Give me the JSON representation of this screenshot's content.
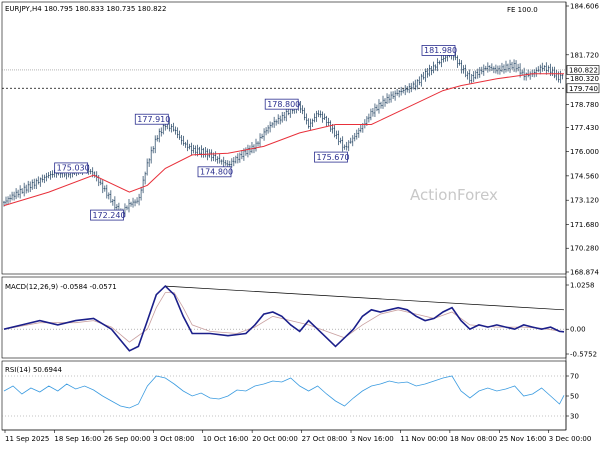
{
  "chart_data": [
    {
      "type": "candlestick-line",
      "title": "EURJPY,H4",
      "ohlc": [
        "180.795",
        "180.833",
        "180.735",
        "180.822"
      ],
      "corner_label": "FE 100.0",
      "watermark": "ActionForex",
      "ylim": [
        168.874,
        184.606
      ],
      "y_ticks": [
        "184.606",
        "181.720",
        "180.320",
        "178.780",
        "177.430",
        "176.000",
        "174.560",
        "173.120",
        "171.680",
        "170.280",
        "168.874"
      ],
      "x_ticks": [
        "11 Sep 2025",
        "18 Sep 16:00",
        "26 Sep 00:00",
        "3 Oct 08:00",
        "10 Oct 16:00",
        "20 Oct 00:00",
        "27 Oct 08:00",
        "3 Nov 16:00",
        "11 Nov 00:00",
        "18 Nov 08:00",
        "25 Nov 16:00",
        "3 Dec 00:00"
      ],
      "price_labels": [
        {
          "label": "175.030",
          "value": 175.03,
          "x": 18
        },
        {
          "label": "172.240",
          "value": 172.24,
          "x": 26
        },
        {
          "label": "177.910",
          "value": 177.91,
          "x": 36
        },
        {
          "label": "174.800",
          "value": 174.8,
          "x": 50
        },
        {
          "label": "178.800",
          "value": 178.8,
          "x": 65
        },
        {
          "label": "175.670",
          "value": 175.67,
          "x": 76
        },
        {
          "label": "181.980",
          "value": 181.98,
          "x": 100
        }
      ],
      "last_price": "180.822",
      "support_level": "179.740",
      "close_path": [
        [
          0,
          173.0
        ],
        [
          2,
          173.4
        ],
        [
          4,
          173.7
        ],
        [
          6,
          174.0
        ],
        [
          8,
          174.3
        ],
        [
          10,
          174.6
        ],
        [
          12,
          174.8
        ],
        [
          14,
          174.7
        ],
        [
          16,
          174.9
        ],
        [
          18,
          175.0
        ],
        [
          20,
          174.7
        ],
        [
          22,
          173.9
        ],
        [
          24,
          173.1
        ],
        [
          26,
          172.3
        ],
        [
          28,
          172.9
        ],
        [
          30,
          173.1
        ],
        [
          32,
          175.3
        ],
        [
          34,
          176.8
        ],
        [
          36,
          177.6
        ],
        [
          38,
          177.3
        ],
        [
          40,
          176.5
        ],
        [
          42,
          176.1
        ],
        [
          44,
          176.0
        ],
        [
          46,
          175.8
        ],
        [
          48,
          175.5
        ],
        [
          50,
          175.2
        ],
        [
          52,
          175.6
        ],
        [
          54,
          176.0
        ],
        [
          56,
          176.3
        ],
        [
          58,
          177.1
        ],
        [
          60,
          177.7
        ],
        [
          62,
          178.0
        ],
        [
          64,
          178.5
        ],
        [
          66,
          178.7
        ],
        [
          68,
          177.5
        ],
        [
          70,
          178.3
        ],
        [
          72,
          177.8
        ],
        [
          74,
          177.0
        ],
        [
          76,
          176.2
        ],
        [
          78,
          176.8
        ],
        [
          80,
          177.5
        ],
        [
          82,
          178.3
        ],
        [
          84,
          178.8
        ],
        [
          86,
          179.2
        ],
        [
          88,
          179.5
        ],
        [
          90,
          179.7
        ],
        [
          92,
          180.0
        ],
        [
          94,
          180.6
        ],
        [
          96,
          181.0
        ],
        [
          98,
          181.5
        ],
        [
          100,
          181.8
        ],
        [
          102,
          181.0
        ],
        [
          104,
          180.3
        ],
        [
          106,
          180.7
        ],
        [
          108,
          181.0
        ],
        [
          110,
          180.8
        ],
        [
          112,
          181.0
        ],
        [
          114,
          181.1
        ],
        [
          116,
          180.5
        ],
        [
          118,
          180.6
        ],
        [
          120,
          181.0
        ],
        [
          122,
          180.8
        ],
        [
          124,
          180.3
        ],
        [
          125,
          180.8
        ]
      ],
      "ma_path": [
        [
          0,
          172.8
        ],
        [
          10,
          173.6
        ],
        [
          20,
          174.6
        ],
        [
          28,
          173.6
        ],
        [
          32,
          174.0
        ],
        [
          36,
          175.0
        ],
        [
          42,
          175.8
        ],
        [
          50,
          175.9
        ],
        [
          58,
          176.3
        ],
        [
          66,
          177.1
        ],
        [
          74,
          177.6
        ],
        [
          82,
          177.6
        ],
        [
          90,
          178.6
        ],
        [
          98,
          179.6
        ],
        [
          102,
          179.9
        ],
        [
          110,
          180.3
        ],
        [
          118,
          180.6
        ],
        [
          125,
          180.6
        ]
      ]
    },
    {
      "type": "line",
      "title": "MACD(12,26,9) -0.0584 -0.0571",
      "ylim": [
        -0.5752,
        1.0258
      ],
      "y_ticks": [
        "1.0258",
        "0.00",
        "-0.5752"
      ],
      "series": [
        {
          "values": [
            [
              0,
              0.0
            ],
            [
              4,
              0.1
            ],
            [
              8,
              0.2
            ],
            [
              12,
              0.1
            ],
            [
              16,
              0.2
            ],
            [
              20,
              0.25
            ],
            [
              24,
              0.0
            ],
            [
              28,
              -0.5
            ],
            [
              30,
              -0.4
            ],
            [
              32,
              0.2
            ],
            [
              34,
              0.8
            ],
            [
              36,
              1.0
            ],
            [
              38,
              0.8
            ],
            [
              40,
              0.3
            ],
            [
              42,
              -0.1
            ],
            [
              46,
              -0.1
            ],
            [
              50,
              -0.15
            ],
            [
              54,
              -0.1
            ],
            [
              56,
              0.1
            ],
            [
              58,
              0.35
            ],
            [
              60,
              0.4
            ],
            [
              62,
              0.3
            ],
            [
              64,
              0.1
            ],
            [
              66,
              -0.05
            ],
            [
              68,
              0.2
            ],
            [
              70,
              0.0
            ],
            [
              72,
              -0.2
            ],
            [
              74,
              -0.4
            ],
            [
              76,
              -0.2
            ],
            [
              78,
              0.0
            ],
            [
              80,
              0.3
            ],
            [
              82,
              0.45
            ],
            [
              84,
              0.4
            ],
            [
              86,
              0.45
            ],
            [
              88,
              0.5
            ],
            [
              90,
              0.45
            ],
            [
              92,
              0.3
            ],
            [
              94,
              0.2
            ],
            [
              96,
              0.25
            ],
            [
              98,
              0.4
            ],
            [
              100,
              0.5
            ],
            [
              102,
              0.2
            ],
            [
              104,
              0.0
            ],
            [
              106,
              0.1
            ],
            [
              108,
              0.05
            ],
            [
              110,
              0.1
            ],
            [
              112,
              0.05
            ],
            [
              114,
              0.0
            ],
            [
              116,
              0.1
            ],
            [
              118,
              0.05
            ],
            [
              120,
              0.0
            ],
            [
              122,
              0.05
            ],
            [
              124,
              -0.05
            ],
            [
              125,
              -0.06
            ]
          ]
        },
        {
          "values": [
            [
              0,
              0.0
            ],
            [
              8,
              0.15
            ],
            [
              16,
              0.15
            ],
            [
              20,
              0.2
            ],
            [
              24,
              0.05
            ],
            [
              28,
              -0.3
            ],
            [
              32,
              0.0
            ],
            [
              34,
              0.5
            ],
            [
              36,
              0.85
            ],
            [
              38,
              0.85
            ],
            [
              40,
              0.5
            ],
            [
              42,
              0.1
            ],
            [
              46,
              -0.05
            ],
            [
              52,
              -0.1
            ],
            [
              56,
              0.05
            ],
            [
              60,
              0.3
            ],
            [
              64,
              0.2
            ],
            [
              68,
              0.1
            ],
            [
              72,
              -0.05
            ],
            [
              76,
              -0.2
            ],
            [
              80,
              0.1
            ],
            [
              84,
              0.35
            ],
            [
              88,
              0.45
            ],
            [
              92,
              0.35
            ],
            [
              96,
              0.25
            ],
            [
              100,
              0.4
            ],
            [
              104,
              0.1
            ],
            [
              110,
              0.05
            ],
            [
              116,
              0.05
            ],
            [
              120,
              0.02
            ],
            [
              125,
              -0.057
            ]
          ]
        }
      ],
      "trendline": [
        [
          36,
          1.0
        ],
        [
          125,
          0.45
        ]
      ]
    },
    {
      "type": "line",
      "title": "RSI(14) 50.6944",
      "ylim": [
        20,
        80
      ],
      "y_ticks": [
        "70",
        "50",
        "30"
      ],
      "series": [
        {
          "values": [
            [
              0,
              55
            ],
            [
              2,
              60
            ],
            [
              4,
              52
            ],
            [
              6,
              58
            ],
            [
              8,
              54
            ],
            [
              10,
              60
            ],
            [
              12,
              55
            ],
            [
              14,
              62
            ],
            [
              16,
              57
            ],
            [
              18,
              60
            ],
            [
              20,
              56
            ],
            [
              22,
              50
            ],
            [
              24,
              45
            ],
            [
              26,
              40
            ],
            [
              28,
              38
            ],
            [
              30,
              42
            ],
            [
              32,
              60
            ],
            [
              34,
              70
            ],
            [
              36,
              68
            ],
            [
              38,
              62
            ],
            [
              40,
              55
            ],
            [
              42,
              50
            ],
            [
              44,
              53
            ],
            [
              46,
              48
            ],
            [
              48,
              47
            ],
            [
              50,
              50
            ],
            [
              52,
              56
            ],
            [
              54,
              55
            ],
            [
              56,
              60
            ],
            [
              58,
              62
            ],
            [
              60,
              65
            ],
            [
              62,
              64
            ],
            [
              64,
              68
            ],
            [
              66,
              60
            ],
            [
              68,
              55
            ],
            [
              70,
              60
            ],
            [
              72,
              52
            ],
            [
              74,
              45
            ],
            [
              76,
              40
            ],
            [
              78,
              48
            ],
            [
              80,
              55
            ],
            [
              82,
              60
            ],
            [
              84,
              62
            ],
            [
              86,
              65
            ],
            [
              88,
              63
            ],
            [
              90,
              64
            ],
            [
              92,
              60
            ],
            [
              94,
              62
            ],
            [
              96,
              65
            ],
            [
              98,
              68
            ],
            [
              100,
              70
            ],
            [
              102,
              55
            ],
            [
              104,
              48
            ],
            [
              106,
              55
            ],
            [
              108,
              58
            ],
            [
              110,
              55
            ],
            [
              112,
              57
            ],
            [
              114,
              60
            ],
            [
              116,
              50
            ],
            [
              118,
              52
            ],
            [
              120,
              58
            ],
            [
              122,
              50
            ],
            [
              124,
              42
            ],
            [
              125,
              50.7
            ]
          ]
        }
      ]
    }
  ]
}
